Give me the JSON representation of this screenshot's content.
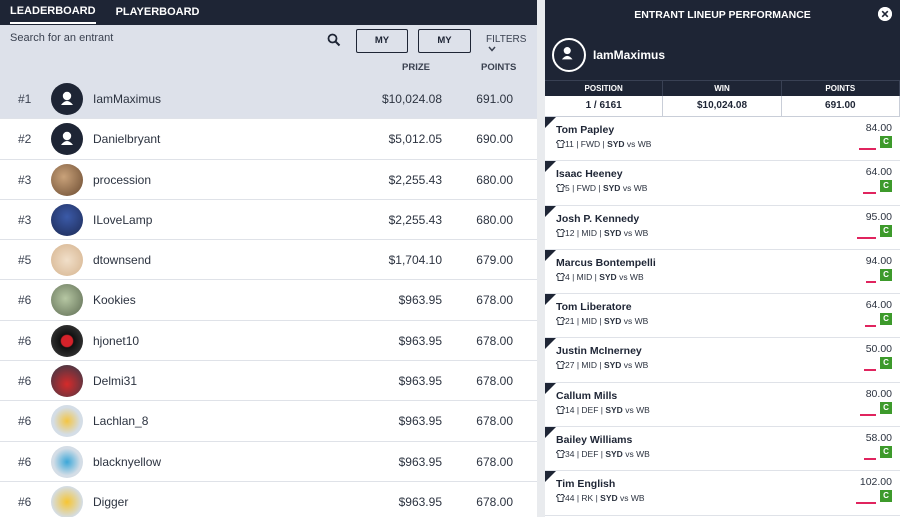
{
  "nav": {
    "tabs": [
      "LEADERBOARD",
      "PLAYERBOARD"
    ]
  },
  "search": {
    "placeholder": "Search for an entrant"
  },
  "filters_bar": {
    "my_entries": "MY ENTRIES",
    "my_friends": "MY FRIENDS",
    "filters": "FILTERS"
  },
  "columns": {
    "prize": "PRIZE",
    "points": "POINTS"
  },
  "leaderboard": [
    {
      "rank": "#1",
      "name": "IamMaximus",
      "prize": "$10,024.08",
      "points": "691.00"
    },
    {
      "rank": "#2",
      "name": "Danielbryant",
      "prize": "$5,012.05",
      "points": "690.00"
    },
    {
      "rank": "#3",
      "name": "procession",
      "prize": "$2,255.43",
      "points": "680.00"
    },
    {
      "rank": "#3",
      "name": "ILoveLamp",
      "prize": "$2,255.43",
      "points": "680.00"
    },
    {
      "rank": "#5",
      "name": "dtownsend",
      "prize": "$1,704.10",
      "points": "679.00"
    },
    {
      "rank": "#6",
      "name": "Kookies",
      "prize": "$963.95",
      "points": "678.00"
    },
    {
      "rank": "#6",
      "name": "hjonet10",
      "prize": "$963.95",
      "points": "678.00"
    },
    {
      "rank": "#6",
      "name": "Delmi31",
      "prize": "$963.95",
      "points": "678.00"
    },
    {
      "rank": "#6",
      "name": "Lachlan_8",
      "prize": "$963.95",
      "points": "678.00"
    },
    {
      "rank": "#6",
      "name": "blacknyellow",
      "prize": "$963.95",
      "points": "678.00"
    },
    {
      "rank": "#6",
      "name": "Digger",
      "prize": "$963.95",
      "points": "678.00"
    }
  ],
  "panel": {
    "title": "ENTRANT LINEUP PERFORMANCE",
    "username": "IamMaximus",
    "stat_labels": [
      "POSITION",
      "WIN",
      "POINTS"
    ],
    "stat_values": [
      "1 / 6161",
      "$10,024.08",
      "691.00"
    ],
    "players": [
      {
        "name": "Tom Papley",
        "num": "11",
        "pos": "FWD",
        "team": "SYD",
        "vs": "vs WB",
        "points": "84.00",
        "badge": "C",
        "bar": 0.14
      },
      {
        "name": "Isaac Heeney",
        "num": "5",
        "pos": "FWD",
        "team": "SYD",
        "vs": "vs WB",
        "points": "64.00",
        "badge": "C",
        "bar": 0.11
      },
      {
        "name": "Josh P. Kennedy",
        "num": "12",
        "pos": "MID",
        "team": "SYD",
        "vs": "vs WB",
        "points": "95.00",
        "badge": "C",
        "bar": 0.16
      },
      {
        "name": "Marcus Bontempelli",
        "num": "4",
        "pos": "MID",
        "team": "SYD",
        "vs": "vs WB",
        "points": "94.00",
        "badge": "C",
        "bar": 0.08
      },
      {
        "name": "Tom Liberatore",
        "num": "21",
        "pos": "MID",
        "team": "SYD",
        "vs": "vs WB",
        "points": "64.00",
        "badge": "C",
        "bar": 0.09
      },
      {
        "name": "Justin McInerney",
        "num": "27",
        "pos": "MID",
        "team": "SYD",
        "vs": "vs WB",
        "points": "50.00",
        "badge": "C",
        "bar": 0.1
      },
      {
        "name": "Callum Mills",
        "num": "14",
        "pos": "DEF",
        "team": "SYD",
        "vs": "vs WB",
        "points": "80.00",
        "badge": "C",
        "bar": 0.13
      },
      {
        "name": "Bailey Williams",
        "num": "34",
        "pos": "DEF",
        "team": "SYD",
        "vs": "vs WB",
        "points": "58.00",
        "badge": "C",
        "bar": 0.1
      },
      {
        "name": "Tim English",
        "num": "44",
        "pos": "RK",
        "team": "SYD",
        "vs": "vs WB",
        "points": "102.00",
        "badge": "C",
        "bar": 0.17
      }
    ]
  },
  "colors": {
    "navy": "#1e2535",
    "highlight": "#dde1ea",
    "badge_green": "#3d9a2b",
    "bar_red": "#e0245e"
  }
}
